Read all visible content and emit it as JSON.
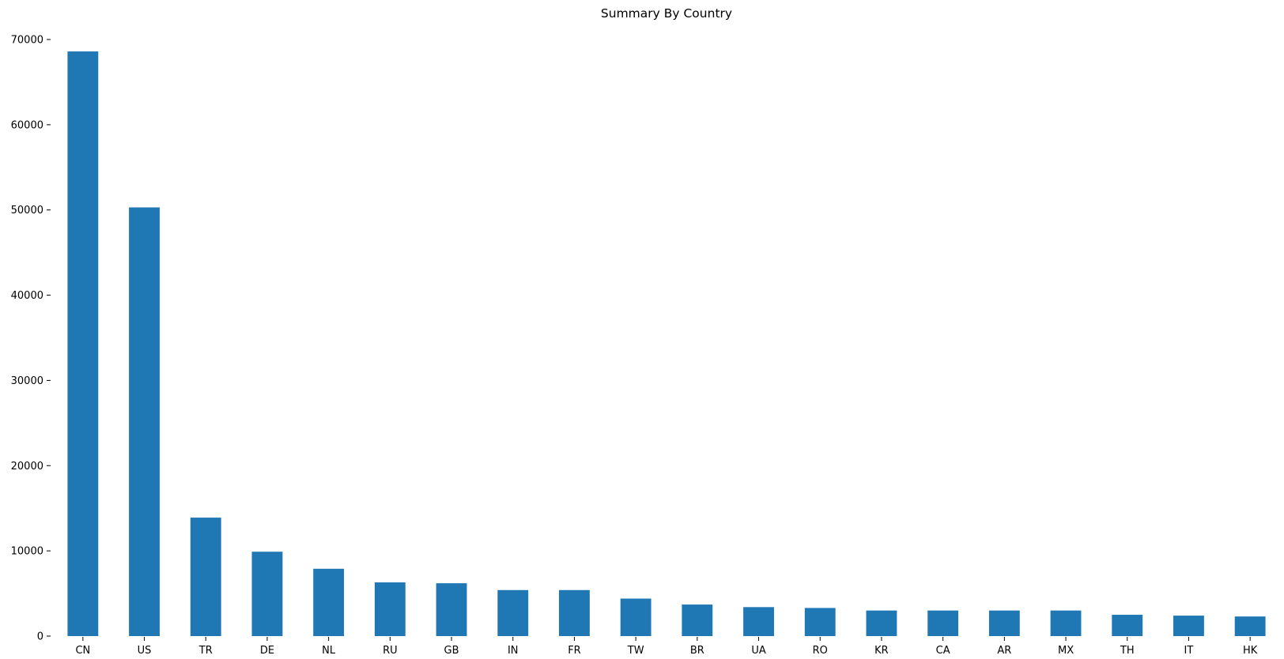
{
  "chart_data": {
    "type": "bar",
    "title": "Summary By Country",
    "xlabel": "",
    "ylabel": "",
    "categories": [
      "CN",
      "US",
      "TR",
      "DE",
      "NL",
      "RU",
      "GB",
      "IN",
      "FR",
      "TW",
      "BR",
      "UA",
      "RO",
      "KR",
      "CA",
      "AR",
      "MX",
      "TH",
      "IT",
      "HK"
    ],
    "series": [
      {
        "values": [
          68600,
          50300,
          13900,
          9900,
          7900,
          6300,
          6200,
          5400,
          5400,
          4400,
          3700,
          3400,
          3300,
          3000,
          3000,
          3000,
          3000,
          2500,
          2400,
          2300
        ]
      }
    ],
    "yticks": [
      0,
      10000,
      20000,
      30000,
      40000,
      50000,
      60000,
      70000
    ],
    "ylim": [
      0,
      70000
    ],
    "grid": false,
    "legend": "none",
    "bar_color": "#1f77b4"
  }
}
